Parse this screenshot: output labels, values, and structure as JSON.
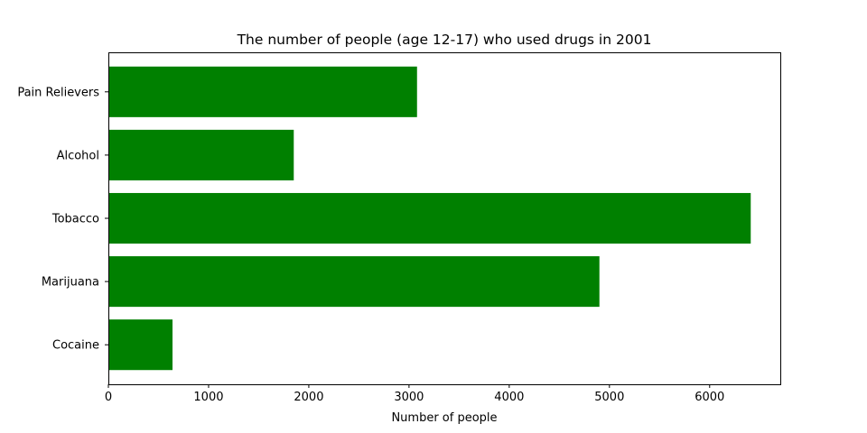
{
  "chart_data": {
    "type": "bar",
    "orientation": "horizontal",
    "title": "The number of people (age 12-17) who used drugs in 2001",
    "xlabel": "Number of people",
    "ylabel": "",
    "categories": [
      "Cocaine",
      "Marijuana",
      "Tobacco",
      "Alcohol",
      "Pain Relievers"
    ],
    "values": [
      640,
      4900,
      6410,
      1850,
      3080
    ],
    "xlim": [
      0,
      6705
    ],
    "xticks": [
      0,
      1000,
      2000,
      3000,
      4000,
      5000,
      6000
    ],
    "grid": false,
    "bar_color": "#008000"
  }
}
